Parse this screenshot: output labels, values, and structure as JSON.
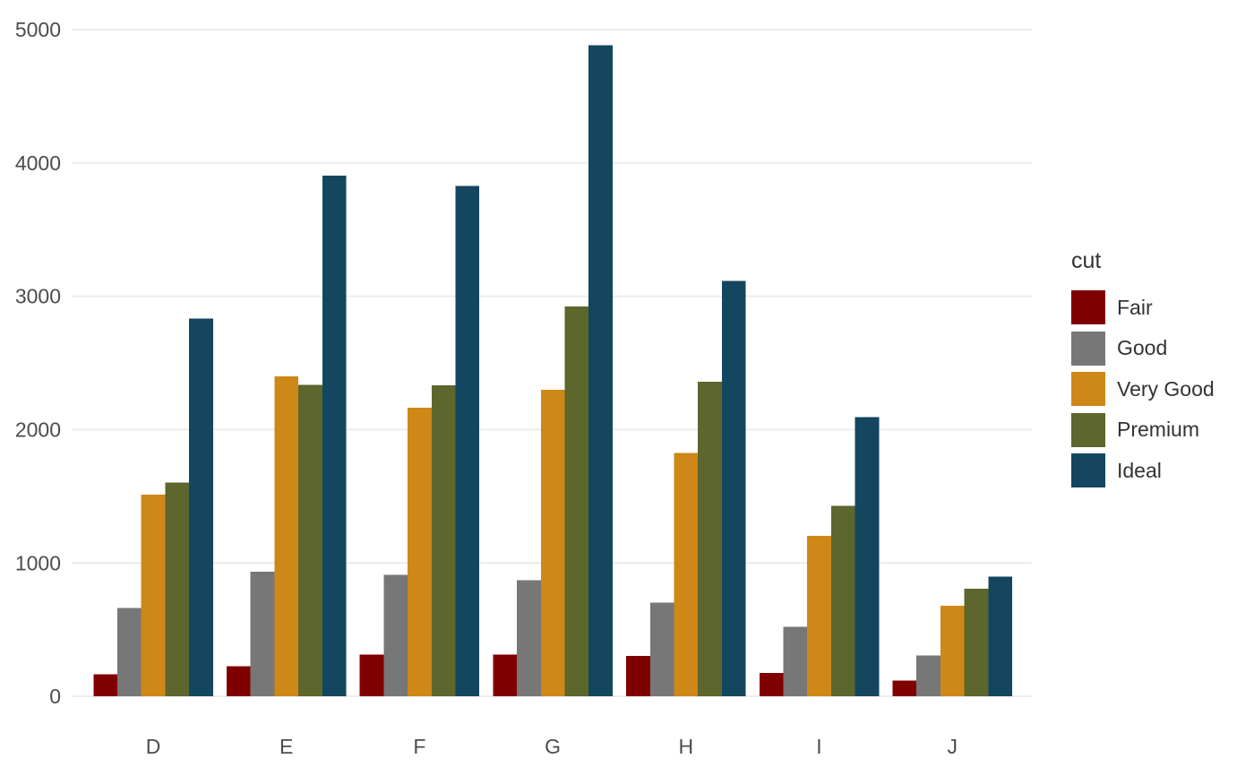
{
  "figure": {
    "background": "#ffffff",
    "grid_color": "#ececec",
    "tick_text_color": "#4c4c4c",
    "legend_text_color": "#333333"
  },
  "legend": {
    "title": "cut",
    "items": [
      {
        "label": "Fair",
        "color": "#800000"
      },
      {
        "label": "Good",
        "color": "#777777"
      },
      {
        "label": "Very Good",
        "color": "#CE8817"
      },
      {
        "label": "Premium",
        "color": "#5D662C"
      },
      {
        "label": "Ideal",
        "color": "#14465F"
      }
    ]
  },
  "chart_data": {
    "type": "bar",
    "title": "",
    "xlabel": "",
    "ylabel": "",
    "categories": [
      "D",
      "E",
      "F",
      "G",
      "H",
      "I",
      "J"
    ],
    "series": [
      {
        "name": "Fair",
        "color": "#800000",
        "values": [
          163,
          224,
          312,
          314,
          303,
          175,
          119
        ]
      },
      {
        "name": "Good",
        "color": "#777777",
        "values": [
          662,
          933,
          909,
          871,
          702,
          522,
          307
        ]
      },
      {
        "name": "Very Good",
        "color": "#CE8817",
        "values": [
          1513,
          2400,
          2164,
          2299,
          1824,
          1204,
          678
        ]
      },
      {
        "name": "Premium",
        "color": "#5D662C",
        "values": [
          1603,
          2337,
          2331,
          2924,
          2360,
          1428,
          808
        ]
      },
      {
        "name": "Ideal",
        "color": "#14465F",
        "values": [
          2834,
          3903,
          3826,
          4884,
          3115,
          2093,
          896
        ]
      }
    ],
    "ylim": [
      0,
      5000
    ],
    "yticks": [
      0,
      1000,
      2000,
      3000,
      4000,
      5000
    ],
    "grid": "horizontal",
    "legend_position": "right",
    "legend_title": "cut",
    "bar_mode": "grouped"
  }
}
